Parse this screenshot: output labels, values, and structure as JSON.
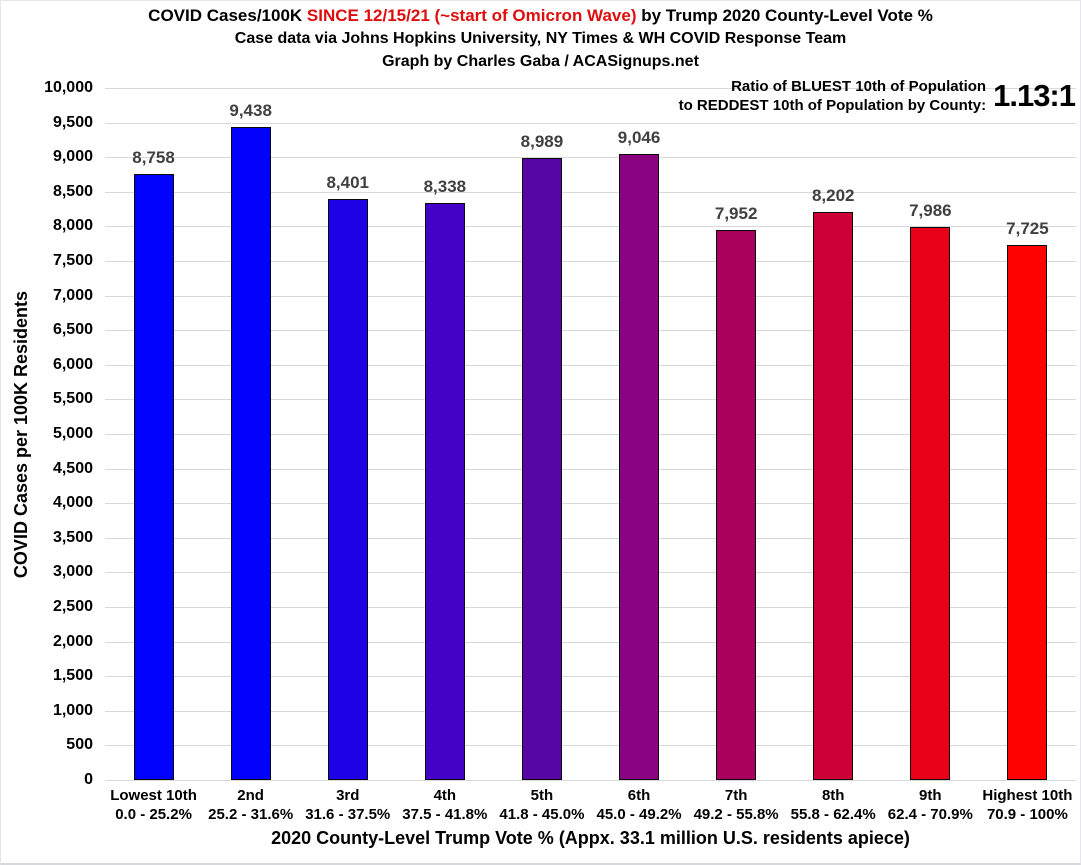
{
  "header": {
    "title_parts": [
      {
        "text": "COVID Cases/100K ",
        "color": "#000000"
      },
      {
        "text": "SINCE 12/15/21 (~start of Omicron Wave)",
        "color": "#df0d0d"
      },
      {
        "text": " by Trump 2020 County-Level Vote %",
        "color": "#000000"
      }
    ],
    "subtitle_source": "Case data via Johns Hopkins University, NY Times & WH COVID Response Team",
    "subtitle_credit": "Graph by Charles Gaba / ACASignups.net"
  },
  "annotation": {
    "line1": "Ratio of BLUEST 10th of Population",
    "line2": "to REDDEST 10th of Population by County:",
    "value": "1.13:1"
  },
  "chart_data": {
    "type": "bar",
    "title": "COVID Cases/100K SINCE 12/15/21 (~start of Omicron Wave) by Trump 2020 County-Level Vote %",
    "subtitle": "Case data via Johns Hopkins University, NY Times & WH COVID Response Team | Graph by Charles Gaba / ACASignups.net",
    "xlabel": "2020 County-Level Trump Vote % (Appx. 33.1 million U.S. residents apiece)",
    "ylabel": "COVID Cases per 100K Residents",
    "ylim": [
      0,
      10000
    ],
    "ytick_step": 500,
    "grid": true,
    "legend_position": "none",
    "categories": [
      "Lowest 10th",
      "2nd",
      "3rd",
      "4th",
      "5th",
      "6th",
      "7th",
      "8th",
      "9th",
      "Highest 10th"
    ],
    "category_ranges": [
      "0.0 - 25.2%",
      "25.2 - 31.6%",
      "31.6 - 37.5%",
      "37.5 - 41.8%",
      "41.8 - 45.0%",
      "45.0 - 49.2%",
      "49.2 - 55.8%",
      "55.8 - 62.4%",
      "62.4 - 70.9%",
      "70.9 - 100%"
    ],
    "values": [
      8758,
      9438,
      8401,
      8338,
      8989,
      9046,
      7952,
      8202,
      7986,
      7725
    ],
    "value_labels": [
      "8,758",
      "9,438",
      "8,401",
      "8,338",
      "8,989",
      "9,046",
      "7,952",
      "8,202",
      "7,986",
      "7,725"
    ],
    "bar_colors": [
      "#0101fe",
      "#0101fd",
      "#1d02e6",
      "#4203c6",
      "#5506a4",
      "#8a0380",
      "#a9025d",
      "#cc0136",
      "#e80119",
      "#fe0101"
    ],
    "grid_color": "#d9d9d9",
    "value_label_color": "#404040",
    "bar_border_color": "#0a0a0a"
  }
}
